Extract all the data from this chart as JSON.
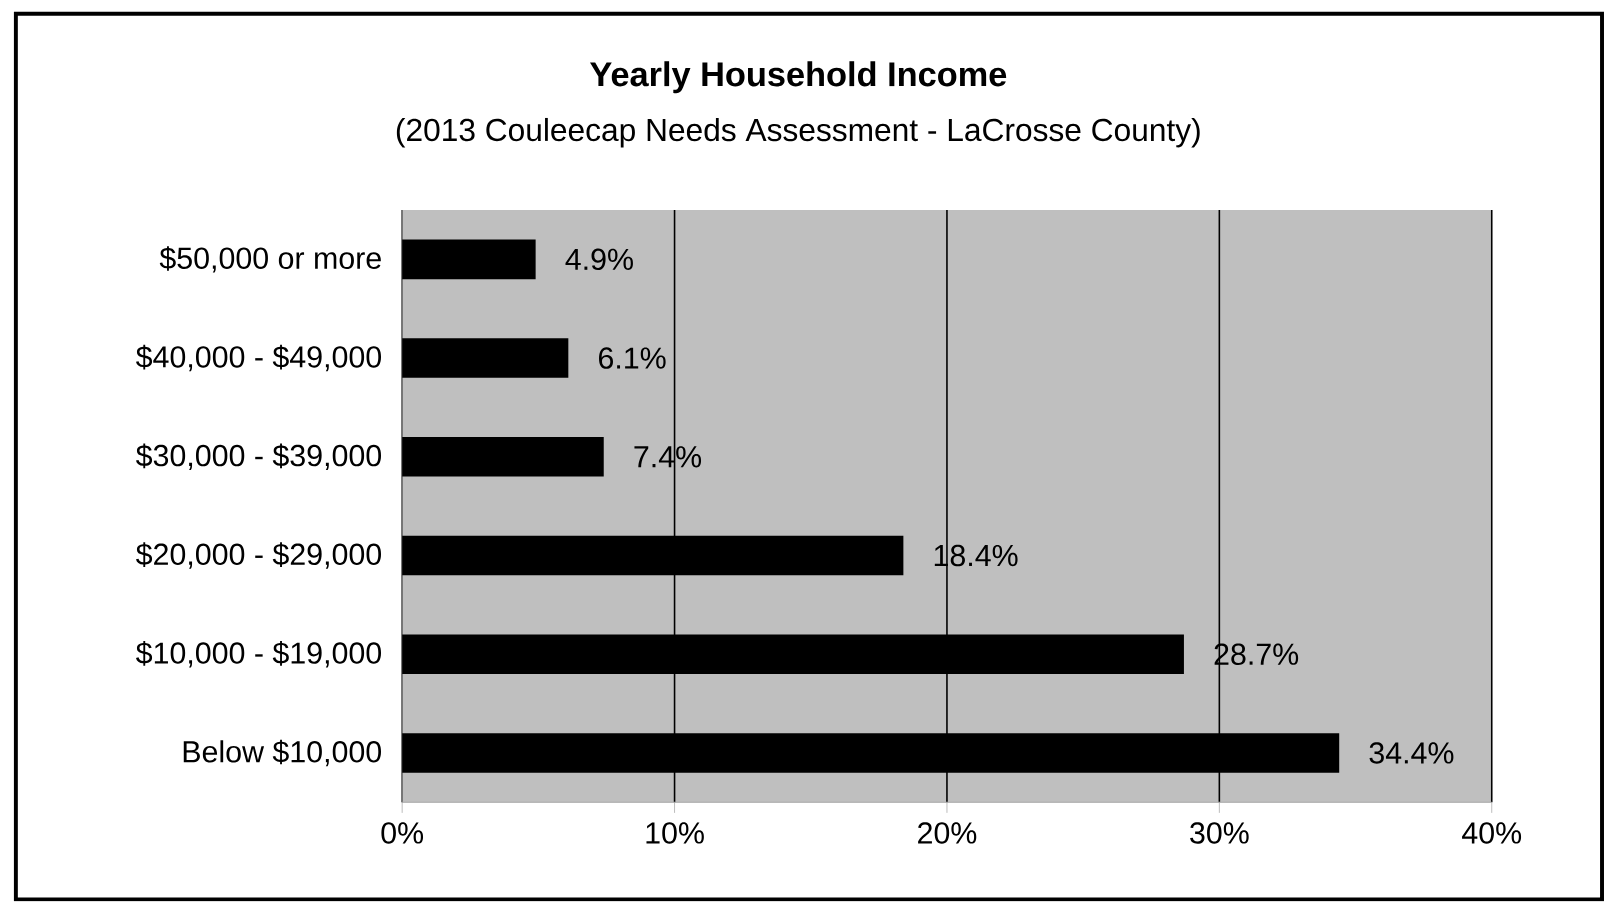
{
  "chart_data": {
    "type": "bar",
    "orientation": "horizontal",
    "title": "Yearly Household  Income",
    "subtitle": "(2013 Couleecap Needs Assessment - LaCrosse County)",
    "categories": [
      "$50,000 or more",
      "$40,000 - $49,000",
      "$30,000 - $39,000",
      "$20,000 - $29,000",
      "$10,000 - $19,000",
      "Below $10,000"
    ],
    "values": [
      4.9,
      6.1,
      7.4,
      18.4,
      28.7,
      34.4
    ],
    "value_labels": [
      "4.9%",
      "6.1%",
      "7.4%",
      "18.4%",
      "28.7%",
      "34.4%"
    ],
    "color": "#000000",
    "xlim": [
      0,
      40
    ],
    "xticks": [
      {
        "value": 0,
        "label": "0%"
      },
      {
        "value": 10,
        "label": "10%"
      },
      {
        "value": 20,
        "label": "20%"
      },
      {
        "value": 30,
        "label": "30%"
      },
      {
        "value": 40,
        "label": "40%"
      }
    ],
    "grid": "x"
  }
}
